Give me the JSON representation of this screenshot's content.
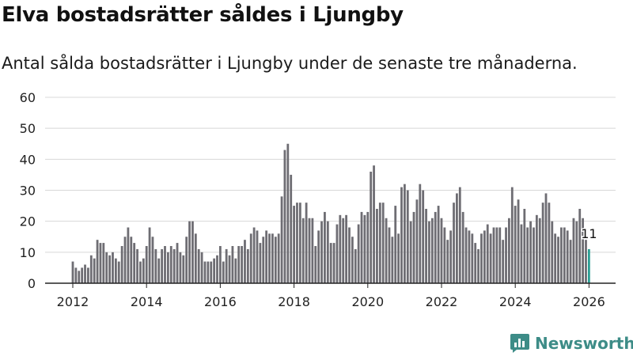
{
  "title": "Elva bostadsrätter såldes i Ljungby",
  "subtitle": "Antal sålda bostadsrätter i Ljungby under de senaste tre månaderna.",
  "brand": {
    "name": "Newsworthy"
  },
  "colors": {
    "bar": "#6e6d73",
    "highlight": "#2b9f94",
    "grid": "#d8d8d8",
    "axis": "#222222",
    "text": "#222222",
    "brand": "#3d8c87"
  },
  "chart_data": {
    "type": "bar",
    "title": "Elva bostadsrätter såldes i Ljungby",
    "subtitle": "Antal sålda bostadsrätter i Ljungby under de senaste tre månaderna.",
    "xlabel": "",
    "ylabel": "",
    "ylim": [
      0,
      60
    ],
    "yticks": [
      0,
      10,
      20,
      30,
      40,
      50,
      60
    ],
    "xticks": [
      2012,
      2014,
      2016,
      2018,
      2020,
      2022,
      2024,
      2026
    ],
    "x_start": 2012.0,
    "x_step_years": 0.08333,
    "grid": true,
    "series": [
      {
        "name": "Antal sålda bostadsrätter",
        "values": [
          7,
          5,
          4,
          5,
          6,
          5,
          9,
          8,
          14,
          13,
          13,
          10,
          9,
          10,
          8,
          7,
          12,
          15,
          18,
          15,
          13,
          11,
          7,
          8,
          12,
          18,
          15,
          11,
          8,
          11,
          12,
          10,
          12,
          11,
          13,
          10,
          9,
          15,
          20,
          20,
          16,
          11,
          10,
          7,
          7,
          7,
          8,
          9,
          12,
          7,
          11,
          9,
          12,
          8,
          12,
          12,
          14,
          11,
          16,
          18,
          17,
          13,
          15,
          17,
          16,
          16,
          15,
          16,
          28,
          43,
          45,
          35,
          25,
          26,
          26,
          21,
          26,
          21,
          21,
          12,
          17,
          20,
          23,
          20,
          13,
          13,
          19,
          22,
          21,
          22,
          18,
          15,
          11,
          19,
          23,
          22,
          23,
          36,
          38,
          24,
          26,
          26,
          21,
          18,
          15,
          25,
          16,
          31,
          32,
          30,
          20,
          23,
          27,
          32,
          30,
          24,
          20,
          21,
          23,
          25,
          21,
          18,
          14,
          17,
          26,
          29,
          31,
          23,
          18,
          17,
          16,
          13,
          11,
          16,
          17,
          19,
          16,
          18,
          18,
          18,
          14,
          18,
          21,
          31,
          25,
          27,
          19,
          24,
          18,
          20,
          18,
          22,
          21,
          26,
          29,
          26,
          20,
          16,
          15,
          18,
          18,
          17,
          14,
          21,
          20,
          24,
          21,
          14,
          11
        ]
      }
    ],
    "highlight": {
      "index": 168,
      "label": "11"
    }
  }
}
